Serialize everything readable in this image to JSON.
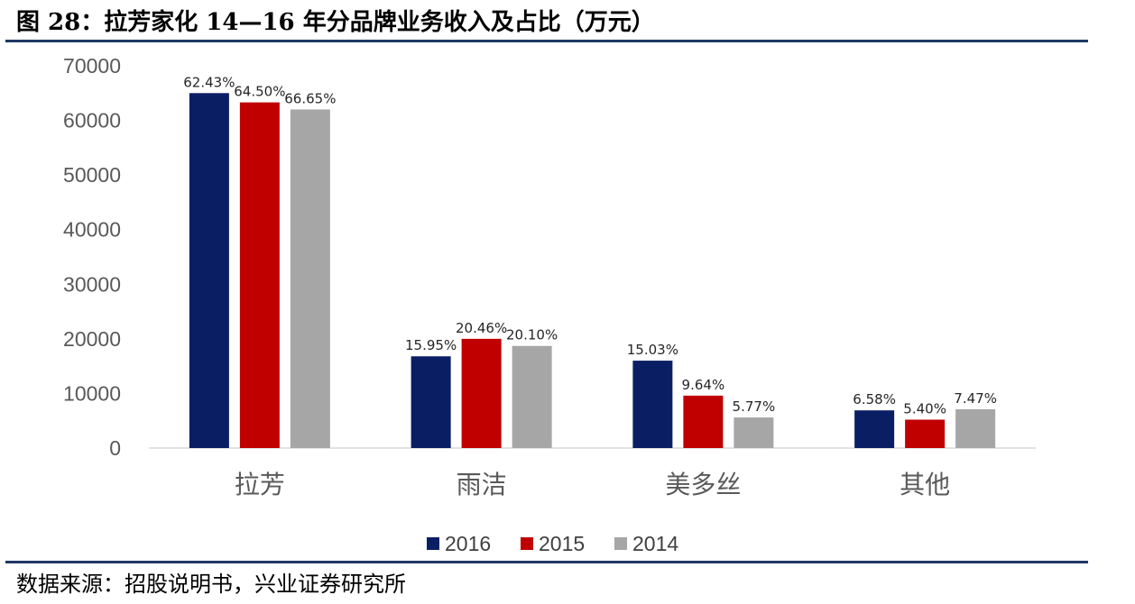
{
  "figure_title": "图 28：拉芳家化 14—16 年分品牌业务收入及占比（万元）",
  "source_note": "数据来源：招股说明书，兴业证券研究所",
  "chart_data": {
    "type": "bar",
    "categories": [
      "拉芳",
      "雨洁",
      "美多丝",
      "其他"
    ],
    "series": [
      {
        "name": "2016",
        "color": "#0a1f63",
        "values": [
          65000,
          16800,
          16000,
          6900
        ],
        "labels": [
          "62.43%",
          "15.95%",
          "15.03%",
          "6.58%"
        ]
      },
      {
        "name": "2015",
        "color": "#c00000",
        "values": [
          63300,
          20000,
          9600,
          5200
        ],
        "labels": [
          "64.50%",
          "20.46%",
          "9.64%",
          "5.40%"
        ]
      },
      {
        "name": "2014",
        "color": "#a6a6a6",
        "values": [
          62000,
          18700,
          5600,
          7100
        ],
        "labels": [
          "66.65%",
          "20.10%",
          "5.77%",
          "7.47%"
        ]
      }
    ],
    "yticks": [
      "0",
      "10000",
      "20000",
      "30000",
      "40000",
      "50000",
      "60000",
      "70000"
    ],
    "ylim": [
      0,
      70000
    ],
    "legend_position": "bottom-center",
    "grid": false
  }
}
